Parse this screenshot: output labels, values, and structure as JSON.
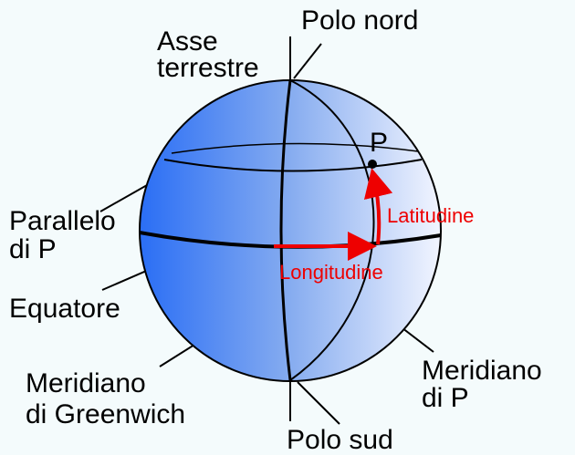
{
  "labels": {
    "axis_1": "Asse",
    "axis_2": "terrestre",
    "north_pole": "Polo nord",
    "point": "P",
    "latitude": "Latitudine",
    "parallel_1": "Parallelo",
    "parallel_2": "di P",
    "longitude": "Longitudine",
    "equator": "Equatore",
    "meridian_p_1": "Meridiano",
    "meridian_p_2": "di P",
    "greenwich_1": "Meridiano",
    "greenwich_2": "di Greenwich",
    "south_pole": "Polo sud"
  }
}
